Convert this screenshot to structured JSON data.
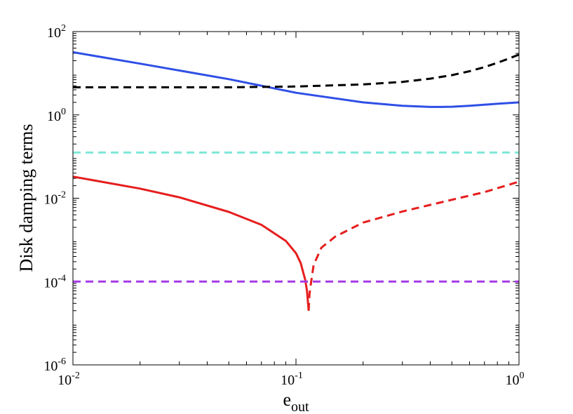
{
  "chart_data": {
    "type": "line",
    "title": "",
    "xlabel": "e",
    "xlabel_subscript": "out",
    "ylabel": "Disk damping terms",
    "xscale": "log",
    "yscale": "log",
    "xlim": [
      0.01,
      1
    ],
    "ylim": [
      1e-06,
      100
    ],
    "grid": false,
    "legend": "none",
    "x_ticks": [
      {
        "value": 0.01,
        "base": "10",
        "exp": "-2"
      },
      {
        "value": 0.1,
        "base": "10",
        "exp": "-1"
      },
      {
        "value": 1,
        "base": "10",
        "exp": "0"
      }
    ],
    "y_ticks": [
      {
        "value": 1e-06,
        "base": "10",
        "exp": "-6"
      },
      {
        "value": 0.0001,
        "base": "10",
        "exp": "-4"
      },
      {
        "value": 0.01,
        "base": "10",
        "exp": "-2"
      },
      {
        "value": 1,
        "base": "10",
        "exp": "0"
      },
      {
        "value": 100,
        "base": "10",
        "exp": "2"
      }
    ],
    "series": [
      {
        "color": "#2f4fe6",
        "dash": "solid",
        "x": [
          0.01,
          0.02,
          0.05,
          0.1,
          0.2,
          0.3,
          0.4,
          0.45,
          0.5,
          0.6,
          0.8,
          1.0
        ],
        "y": [
          32,
          17,
          7.2,
          3.4,
          2.0,
          1.65,
          1.55,
          1.55,
          1.57,
          1.65,
          1.85,
          2.0
        ]
      },
      {
        "color": "#000000",
        "dash": "dashed",
        "x": [
          0.01,
          0.05,
          0.1,
          0.2,
          0.3,
          0.4,
          0.5,
          0.6,
          0.7,
          0.8,
          0.9,
          1.0
        ],
        "y": [
          4.6,
          4.6,
          4.8,
          5.4,
          6.2,
          7.4,
          9.0,
          11.2,
          14.0,
          17.8,
          22.5,
          28
        ]
      },
      {
        "color": "#7fe8d8",
        "dash": "dashed",
        "x": [
          0.01,
          1.0
        ],
        "y": [
          0.125,
          0.125
        ]
      },
      {
        "color": "#e61e1e",
        "dash": "solid",
        "x": [
          0.01,
          0.02,
          0.03,
          0.05,
          0.07,
          0.09,
          0.1,
          0.105,
          0.11,
          0.112,
          0.113,
          0.114
        ],
        "y": [
          0.033,
          0.017,
          0.0105,
          0.0047,
          0.0023,
          0.00095,
          0.00048,
          0.00028,
          0.00011,
          6e-05,
          3.5e-05,
          2e-05
        ]
      },
      {
        "color": "#e61e1e",
        "dash": "dashed",
        "x": [
          0.114,
          0.115,
          0.117,
          0.12,
          0.13,
          0.15,
          0.2,
          0.3,
          0.5,
          0.7,
          1.0
        ],
        "y": [
          2e-05,
          5e-05,
          0.0001,
          0.00025,
          0.00065,
          0.0012,
          0.0026,
          0.0048,
          0.0092,
          0.014,
          0.025
        ]
      },
      {
        "color": "#a53ae8",
        "dash": "dashed",
        "x": [
          0.01,
          1.0
        ],
        "y": [
          0.0001,
          0.0001
        ]
      }
    ]
  }
}
